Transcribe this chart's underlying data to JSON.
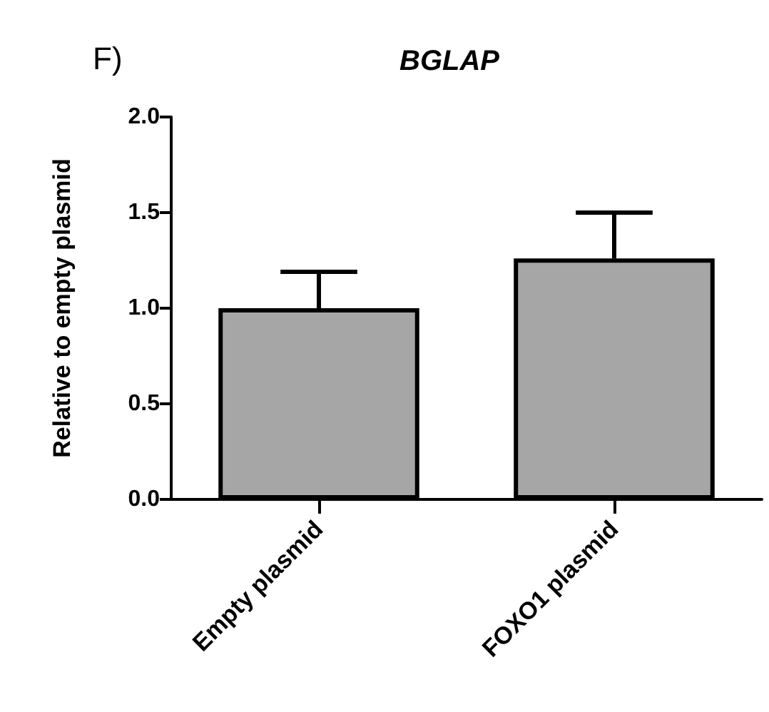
{
  "chart_data": {
    "type": "bar",
    "title": "BGLAP",
    "ylabel": "Relative to empty plasmid",
    "annotations": [
      "F)"
    ],
    "categories": [
      "Empty plasmid",
      "FOXO1 plasmid"
    ],
    "values": [
      1.0,
      1.26
    ],
    "color": "#a6a6a6",
    "errors": [
      [
        1.0,
        1.19
      ],
      [
        1.26,
        1.5
      ]
    ],
    "ylim": [
      0,
      2.0
    ],
    "yticks": [
      {
        "value": 0,
        "label": "0.0"
      },
      {
        "value": 0.5,
        "label": "0.5"
      },
      {
        "value": 1.0,
        "label": "1.0"
      },
      {
        "value": 1.5,
        "label": "1.5"
      },
      {
        "value": 2.0,
        "label": "2.0"
      }
    ],
    "grid": false
  }
}
